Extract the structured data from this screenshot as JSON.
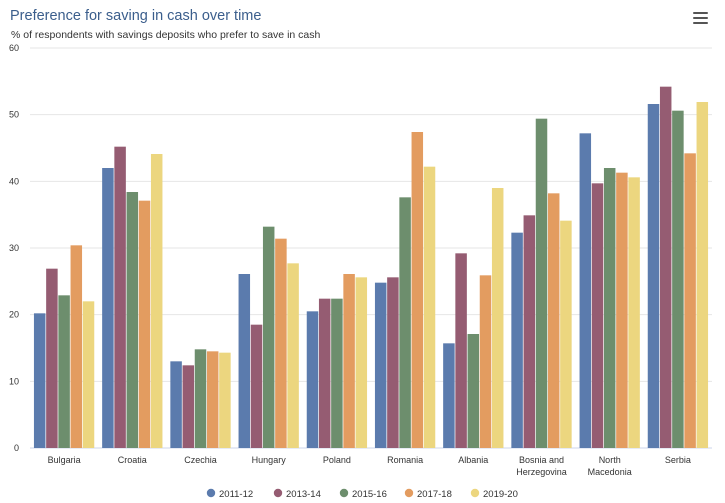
{
  "header": {
    "title": "Preference for saving in cash over time",
    "subtitle": "% of respondents with savings deposits who prefer to save in cash",
    "menu_icon": "hamburger-menu-icon"
  },
  "chart_data": {
    "type": "bar",
    "title": "Preference for saving in cash over time",
    "subtitle": "% of respondents with savings deposits who prefer to save in cash",
    "categories": [
      [
        "Bulgaria"
      ],
      [
        "Croatia"
      ],
      [
        "Czechia"
      ],
      [
        "Hungary"
      ],
      [
        "Poland"
      ],
      [
        "Romania"
      ],
      [
        "Albania"
      ],
      [
        "Bosnia and",
        "Herzegovina"
      ],
      [
        "North",
        "Macedonia"
      ],
      [
        "Serbia"
      ]
    ],
    "series": [
      {
        "name": "2011-12",
        "color": "#5b7bad",
        "values": [
          20.2,
          42.0,
          13.0,
          26.1,
          20.5,
          24.8,
          15.7,
          32.3,
          47.2,
          51.6
        ]
      },
      {
        "name": "2013-14",
        "color": "#955c72",
        "values": [
          26.9,
          45.2,
          12.4,
          18.5,
          22.4,
          25.6,
          29.2,
          34.9,
          39.7,
          54.2
        ]
      },
      {
        "name": "2015-16",
        "color": "#6d8e6d",
        "values": [
          22.9,
          38.4,
          14.8,
          33.2,
          22.4,
          37.6,
          17.1,
          49.4,
          42.0,
          50.6
        ]
      },
      {
        "name": "2017-18",
        "color": "#e39c60",
        "values": [
          30.4,
          37.1,
          14.5,
          31.4,
          26.1,
          47.4,
          25.9,
          38.2,
          41.3,
          44.2
        ]
      },
      {
        "name": "2019-20",
        "color": "#ecd67f",
        "values": [
          22.0,
          44.1,
          14.3,
          27.7,
          25.6,
          42.2,
          39.0,
          34.1,
          40.6,
          51.9
        ]
      }
    ],
    "y_ticks": [
      "0",
      "10",
      "20",
      "30",
      "40",
      "50",
      "60"
    ],
    "ylim": [
      0,
      60
    ],
    "grid": true,
    "legend_position": "bottom-center"
  }
}
